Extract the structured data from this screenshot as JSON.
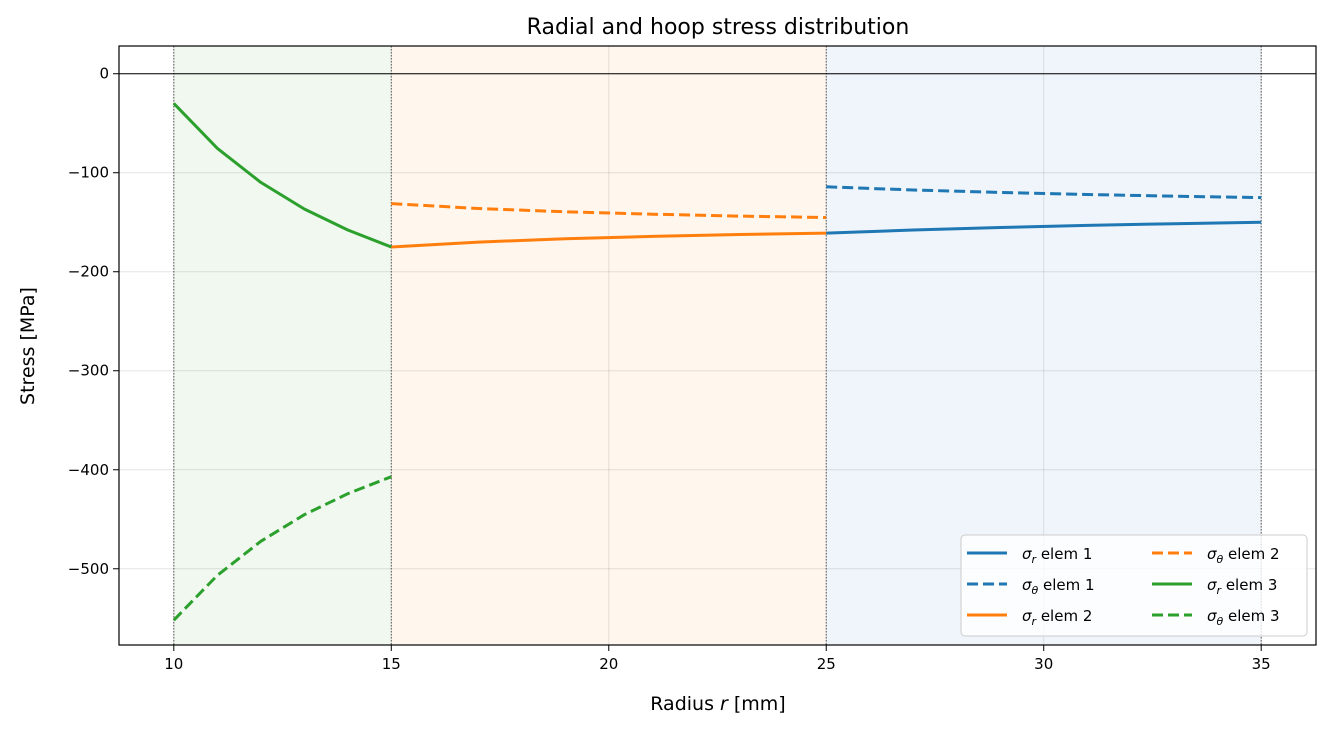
{
  "chart_data": {
    "type": "line",
    "title": "Radial and hoop stress distribution",
    "xlabel": "Radius r [mm]",
    "ylabel": "Stress [MPa]",
    "xlim": [
      8.74,
      36.26
    ],
    "ylim": [
      -577,
      28
    ],
    "xticks": [
      10,
      15,
      20,
      25,
      30,
      35
    ],
    "yticks": [
      0,
      -100,
      -200,
      -300,
      -400,
      -500
    ],
    "xtick_labels": [
      "10",
      "15",
      "20",
      "25",
      "30",
      "35"
    ],
    "ytick_labels": [
      "0",
      "−100",
      "−200",
      "−300",
      "−400",
      "−500"
    ],
    "grid": true,
    "legend_placement": "lower-right",
    "legend_columns": 2,
    "regions": [
      {
        "from": 10,
        "to": 15,
        "color": "#2ca02c"
      },
      {
        "from": 15,
        "to": 25,
        "color": "#ff7f0e"
      },
      {
        "from": 25,
        "to": 35,
        "color": "#1f77b4"
      }
    ],
    "boundaries": [
      10,
      15,
      25,
      35
    ],
    "series": [
      {
        "name": "σr  elem 1",
        "sym": "σ",
        "sub": "r",
        "rest": "  elem 1",
        "color": "#1f77b4",
        "dash": false,
        "x": [
          25,
          27,
          29,
          31,
          33,
          35
        ],
        "y": [
          -161.0,
          -157.8,
          -155.3,
          -153.2,
          -151.5,
          -150.1
        ]
      },
      {
        "name": "σθ elem 1",
        "sym": "σ",
        "sub": "θ",
        "rest": " elem 1",
        "color": "#1f77b4",
        "dash": true,
        "x": [
          25,
          27,
          29,
          31,
          33,
          35
        ],
        "y": [
          -114.2,
          -117.4,
          -119.9,
          -122.0,
          -123.7,
          -125.1
        ]
      },
      {
        "name": "σr  elem 2",
        "sym": "σ",
        "sub": "r",
        "rest": "  elem 2",
        "color": "#ff7f0e",
        "dash": false,
        "x": [
          15,
          17,
          19,
          21,
          23,
          25
        ],
        "y": [
          -175.0,
          -170.1,
          -166.7,
          -164.3,
          -162.4,
          -161.0
        ]
      },
      {
        "name": "σθ elem 2",
        "sym": "σ",
        "sub": "θ",
        "rest": " elem 2",
        "color": "#ff7f0e",
        "dash": true,
        "x": [
          15,
          17,
          19,
          21,
          23,
          25
        ],
        "y": [
          -131.2,
          -136.1,
          -139.5,
          -141.9,
          -143.8,
          -145.2
        ]
      },
      {
        "name": "σr  elem 3",
        "sym": "σ",
        "sub": "r",
        "rest": "  elem 3",
        "color": "#2ca02c",
        "dash": false,
        "x": [
          10,
          11,
          12,
          13,
          14,
          15
        ],
        "y": [
          -30.0,
          -75.3,
          -109.8,
          -136.6,
          -157.8,
          -175.0
        ]
      },
      {
        "name": "σθ elem 3",
        "sym": "σ",
        "sub": "θ",
        "rest": " elem 3",
        "color": "#2ca02c",
        "dash": true,
        "x": [
          10,
          11,
          12,
          13,
          14,
          15
        ],
        "y": [
          -552.0,
          -506.7,
          -472.3,
          -445.4,
          -424.2,
          -407.0
        ]
      }
    ]
  }
}
